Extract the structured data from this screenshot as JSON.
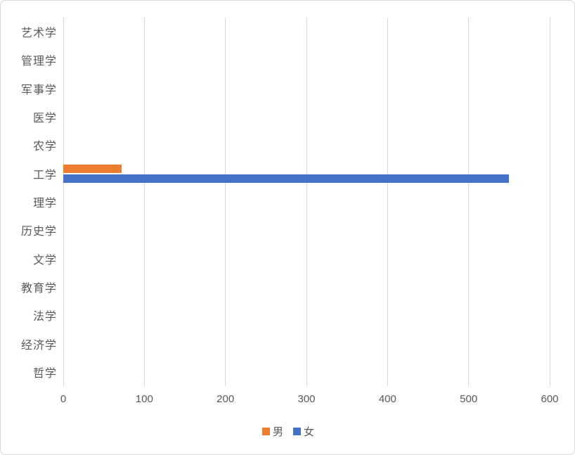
{
  "chart": {
    "background_color": "#FFFFFF",
    "border_color": "#D9D9D9",
    "gridline_color": "#D9D9D9",
    "axis_text_color": "#595959"
  },
  "chart_data": {
    "type": "bar",
    "orientation": "horizontal",
    "title": "",
    "xlabel": "",
    "ylabel": "",
    "categories": [
      "艺术学",
      "管理学",
      "军事学",
      "医学",
      "农学",
      "工学",
      "理学",
      "历史学",
      "文学",
      "教育学",
      "法学",
      "经济学",
      "哲学"
    ],
    "series": [
      {
        "name": "男",
        "key": "male",
        "color": "#ED7D31",
        "values": [
          0,
          0,
          0,
          0,
          0,
          72,
          0,
          0,
          0,
          0,
          0,
          0,
          0
        ]
      },
      {
        "name": "女",
        "key": "female",
        "color": "#4472C4",
        "values": [
          0,
          0,
          0,
          0,
          0,
          550,
          0,
          0,
          0,
          0,
          0,
          0,
          0
        ]
      }
    ],
    "x_ticks": [
      0,
      100,
      200,
      300,
      400,
      500,
      600
    ],
    "xlim": [
      0,
      600
    ],
    "grid": true,
    "legend_position": "bottom"
  }
}
